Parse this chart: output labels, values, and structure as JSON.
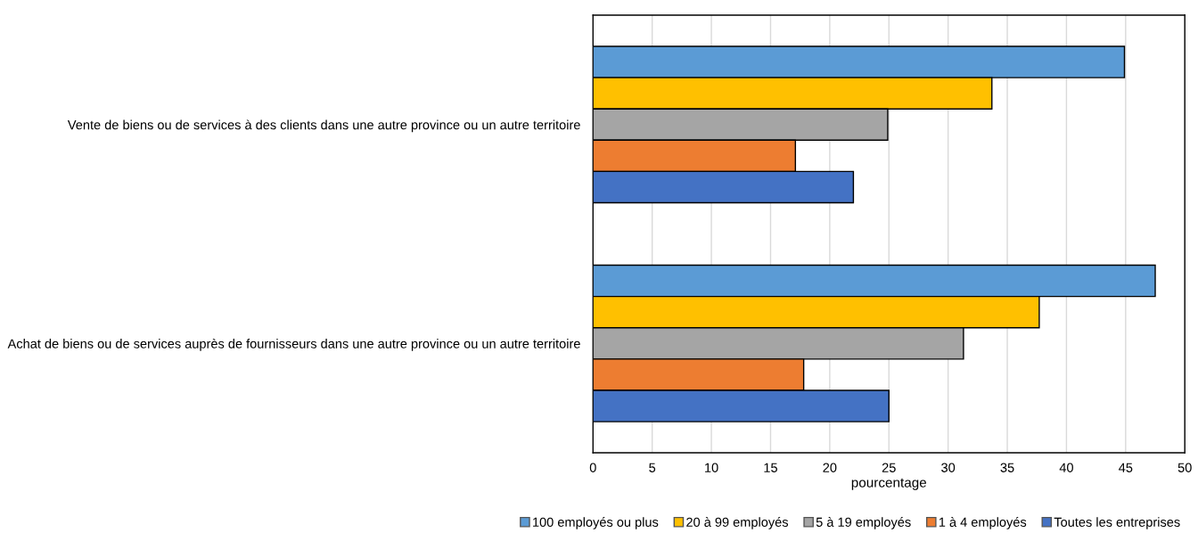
{
  "chart_data": {
    "type": "bar",
    "orientation": "horizontal",
    "xlabel": "pourcentage",
    "categories": [
      "Vente de biens ou de services à des clients dans une autre province ou un autre territoire",
      "Achat de biens ou de services auprès de fournisseurs dans une autre province ou un autre territoire"
    ],
    "series": [
      {
        "name": "100 employés ou plus",
        "color": "#5b9bd5",
        "values": [
          44.9,
          47.5
        ]
      },
      {
        "name": "20 à 99 employés",
        "color": "#ffc000",
        "values": [
          33.7,
          37.7
        ]
      },
      {
        "name": "5 à 19 employés",
        "color": "#a5a5a5",
        "values": [
          24.9,
          31.3
        ]
      },
      {
        "name": "1 à 4 employés",
        "color": "#ed7d31",
        "values": [
          17.1,
          17.8
        ]
      },
      {
        "name": "Toutes les entreprises",
        "color": "#4472c4",
        "values": [
          22.0,
          25.0
        ]
      }
    ],
    "xlim": [
      0,
      50
    ],
    "xticks": [
      0,
      5,
      10,
      15,
      20,
      25,
      30,
      35,
      40,
      45,
      50
    ],
    "grid": "x",
    "legend": "bottom"
  }
}
